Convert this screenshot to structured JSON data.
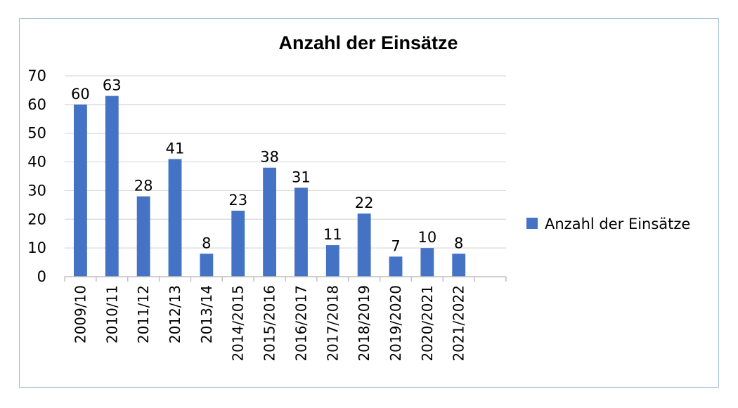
{
  "chart_data": {
    "type": "bar",
    "title": "Anzahl der Einsätze",
    "categories": [
      "2009/10",
      "2010/11",
      "2011/12",
      "2012/13",
      "2013/14",
      "2014/2015",
      "2015/2016",
      "2016/2017",
      "2017/2018",
      "2018/2019",
      "2019/2020",
      "2020/2021",
      "2021/2022"
    ],
    "series": [
      {
        "name": "Anzahl der Einsätze",
        "values": [
          60,
          63,
          28,
          41,
          8,
          23,
          38,
          31,
          11,
          22,
          7,
          10,
          8
        ]
      }
    ],
    "ylim": [
      0,
      70
    ],
    "yticks": [
      0,
      10,
      20,
      30,
      40,
      50,
      60,
      70
    ],
    "grid": true,
    "legend_position": "right",
    "bar_color": "#4472c4",
    "grid_color": "#d9d9d9",
    "axis_color": "#bfbfbf",
    "frame_color": "#9dbbd9"
  }
}
